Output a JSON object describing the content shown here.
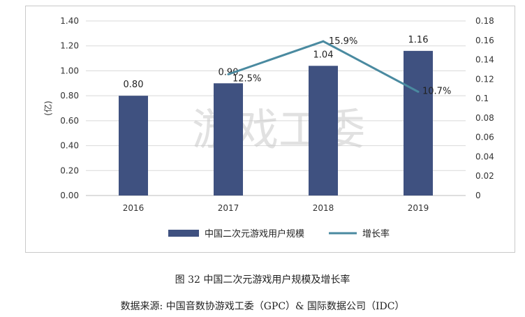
{
  "chart_data": {
    "type": "bar",
    "categories": [
      "2016",
      "2017",
      "2018",
      "2019"
    ],
    "series": [
      {
        "name": "中国二次元游戏用户规模",
        "kind": "bar",
        "axis": "left",
        "values": [
          0.8,
          0.9,
          1.04,
          1.16
        ],
        "labels": [
          "0.80",
          "0.90",
          "1.04",
          "1.16"
        ],
        "color": "#3f5180"
      },
      {
        "name": "增长率",
        "kind": "line",
        "axis": "right",
        "x": [
          "2017",
          "2018",
          "2019"
        ],
        "values": [
          0.125,
          0.159,
          0.107
        ],
        "labels": [
          "12.5%",
          "15.9%",
          "10.7%"
        ],
        "color": "#4a8aa0"
      }
    ],
    "ylabel": "(亿)",
    "ylim": [
      0,
      1.4
    ],
    "yticks": [
      "0.00",
      "0.20",
      "0.40",
      "0.60",
      "0.80",
      "1.00",
      "1.20",
      "1.40"
    ],
    "y2lim": [
      0,
      0.18
    ],
    "y2ticks": [
      "0",
      "0.02",
      "0.04",
      "0.06",
      "0.08",
      "0.1",
      "0.12",
      "0.14",
      "0.16",
      "0.18"
    ],
    "grid": true,
    "legend": "bottom",
    "watermark": "游戏工委"
  },
  "figure_caption": "图 32  中国二次元游戏用户规模及增长率",
  "source_caption": "数据来源: 中国音数协游戏工委（GPC）& 国际数据公司（IDC）"
}
